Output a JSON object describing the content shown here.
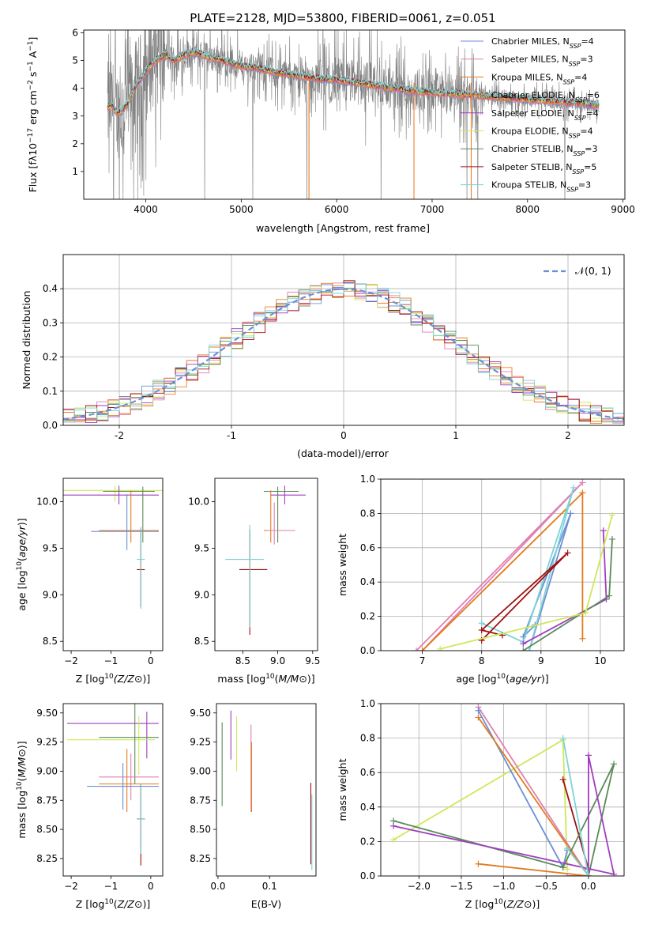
{
  "title": "PLATE=2128, MJD=53800, FIBERID=0061, z=0.051",
  "colors": {
    "Chabrier MILES": "#6b8fd6",
    "Salpeter MILES": "#e07fb0",
    "Kroupa MILES": "#e07c1e",
    "Chabrier ELODIE": "#ee7f2d",
    "Salpeter ELODIE": "#a03fbf",
    "Kroupa ELODIE": "#cfe85a",
    "Chabrier STELIB": "#5a8a5a",
    "Salpeter STELIB": "#a01010",
    "Kroupa STELIB": "#7ed3d8",
    "data": "#808080"
  },
  "chart_data": [
    {
      "type": "line",
      "title": "PLATE=2128, MJD=53800, FIBERID=0061, z=0.051",
      "xlabel": "wavelength [Angstrom, rest frame]",
      "ylabel_parts": [
        "Flux [f",
        "λ",
        "10",
        "−17",
        " erg cm",
        "−2",
        " s",
        "−1",
        " A",
        "−1",
        "]"
      ],
      "xlim": [
        3350,
        9020
      ],
      "ylim": [
        0,
        6.1
      ],
      "xticks": [
        4000,
        5000,
        6000,
        7000,
        8000,
        9000
      ],
      "yticks": [
        1,
        2,
        3,
        4,
        5,
        6
      ],
      "grid": false,
      "legend_loc": "right",
      "legend": [
        {
          "name": "Chabrier MILES",
          "nssp": "4"
        },
        {
          "name": "Salpeter MILES",
          "nssp": "3"
        },
        {
          "name": "Kroupa MILES",
          "nssp": "4"
        },
        {
          "name": "Chabrier ELODIE",
          "nssp": "6"
        },
        {
          "name": "Salpeter ELODIE",
          "nssp": "4"
        },
        {
          "name": "Kroupa ELODIE",
          "nssp": "4"
        },
        {
          "name": "Chabrier STELIB",
          "nssp": "3"
        },
        {
          "name": "Salpeter STELIB",
          "nssp": "5"
        },
        {
          "name": "Kroupa STELIB",
          "nssp": "3"
        }
      ],
      "model_continuum": {
        "x": [
          3600,
          3650,
          3700,
          3750,
          3800,
          3900,
          4000,
          4100,
          4200,
          4300,
          4400,
          4500,
          4600,
          4800,
          5000,
          5200,
          5400,
          5600,
          5800,
          6000,
          6200,
          6400,
          6600,
          6800,
          7000,
          7200,
          7400,
          7600,
          7800,
          8000,
          8200,
          8400,
          8600,
          8700
        ],
        "y": [
          3.3,
          3.4,
          3.1,
          3.2,
          3.4,
          4.1,
          4.6,
          5.0,
          5.2,
          5.0,
          5.2,
          5.3,
          5.2,
          5.0,
          4.8,
          4.7,
          4.55,
          4.45,
          4.35,
          4.3,
          4.2,
          4.1,
          4.0,
          3.9,
          3.85,
          3.8,
          3.75,
          3.7,
          3.65,
          3.6,
          3.55,
          3.5,
          3.45,
          3.4
        ]
      }
    },
    {
      "type": "line",
      "xlabel": "(data-model)/error",
      "ylabel": "Normed distribution",
      "xlim": [
        -2.5,
        2.5
      ],
      "ylim": [
        0,
        0.5
      ],
      "xticks": [
        -2,
        -1,
        0,
        1,
        2
      ],
      "yticks": [
        0.0,
        0.1,
        0.2,
        0.3,
        0.4
      ],
      "grid": true,
      "legend_loc": "top-right",
      "legend": [
        "𝒩(0, 1)"
      ],
      "reference_curve": "N(0,1) gaussian pdf",
      "histogram_bin_width": 0.1
    },
    {
      "type": "scatter",
      "panel": "age vs Z",
      "xlabel": "Z [log10(Z/Z⊙)]",
      "ylabel": "age  [log10(age/yr)]",
      "xlim": [
        -2.2,
        0.3
      ],
      "ylim": [
        8.4,
        10.25
      ],
      "xticks": [
        -2,
        -1,
        0
      ],
      "yticks": [
        8.5,
        9.0,
        9.5,
        10.0
      ],
      "points": [
        {
          "series": "Kroupa ELODIE",
          "x": -0.9,
          "y": 10.12,
          "xerr": [
            1.3,
            1.2
          ],
          "yerr": [
            0.12,
            0.05
          ]
        },
        {
          "series": "Salpeter ELODIE",
          "x": -0.8,
          "y": 10.07,
          "xerr": [
            1.4,
            1.0
          ],
          "yerr": [
            0.1,
            0.1
          ]
        },
        {
          "series": "Chabrier STELIB",
          "x": -0.2,
          "y": 10.11,
          "xerr": [
            1.0,
            0.3
          ],
          "yerr": [
            0.55,
            0.05
          ]
        },
        {
          "series": "Kroupa MILES",
          "x": -0.5,
          "y": 9.69,
          "xerr": [
            0.8,
            0.7
          ],
          "yerr": [
            0.13,
            0.43
          ]
        },
        {
          "series": "Chabrier MILES",
          "x": -0.6,
          "y": 9.68,
          "xerr": [
            0.9,
            0.8
          ],
          "yerr": [
            0.2,
            0.4
          ]
        },
        {
          "series": "Salpeter STELIB",
          "x": -0.25,
          "y": 9.27,
          "xerr": [
            0.1,
            0.1
          ],
          "yerr": [
            0.4,
            0.44
          ]
        },
        {
          "series": "Kroupa STELIB",
          "x": -0.25,
          "y": 9.38,
          "xerr": [
            0.1,
            0.1
          ],
          "yerr": [
            0.53,
            0.35
          ]
        }
      ]
    },
    {
      "type": "scatter",
      "panel": "age vs mass",
      "xlabel": "mass [log10(M/M⊙)]",
      "ylim": [
        8.4,
        10.25
      ],
      "xlim": [
        8.1,
        9.57
      ],
      "xticks": [
        8.5,
        9.0,
        9.5
      ],
      "yticks": [
        8.5,
        9.0,
        9.5,
        10.0
      ],
      "points": [
        {
          "series": "Salpeter ELODIE",
          "x": 9.1,
          "y": 10.07,
          "xerr": [
            0.2,
            0.3
          ],
          "yerr": [
            0.1,
            0.1
          ]
        },
        {
          "series": "Chabrier STELIB",
          "x": 9.0,
          "y": 10.11,
          "xerr": [
            0.2,
            0.3
          ],
          "yerr": [
            0.55,
            0.05
          ]
        },
        {
          "series": "Kroupa MILES",
          "x": 8.9,
          "y": 9.69,
          "xerr": [
            0.1,
            0.2
          ],
          "yerr": [
            0.13,
            0.43
          ]
        },
        {
          "series": "Salpeter MILES",
          "x": 8.95,
          "y": 9.69,
          "xerr": [
            0.1,
            0.3
          ],
          "yerr": [
            0.15,
            0.3
          ]
        },
        {
          "series": "Salpeter STELIB",
          "x": 8.6,
          "y": 9.27,
          "xerr": [
            0.15,
            0.25
          ],
          "yerr": [
            0.7,
            0.43
          ]
        },
        {
          "series": "Kroupa STELIB",
          "x": 8.6,
          "y": 9.38,
          "xerr": [
            0.35,
            0.2
          ],
          "yerr": [
            0.73,
            0.37
          ]
        }
      ]
    },
    {
      "type": "line",
      "panel": "mass weight vs age",
      "xlabel": "age  [log10(age/yr)]",
      "ylabel": "mass weight",
      "xlim": [
        6.3,
        10.4
      ],
      "ylim": [
        0,
        1.0
      ],
      "xticks": [
        7,
        8,
        9,
        10
      ],
      "yticks": [
        0.0,
        0.2,
        0.4,
        0.6,
        0.8,
        1.0
      ],
      "grid": true,
      "series": [
        {
          "name": "Salpeter MILES",
          "x": [
            6.9,
            9.7,
            7.0
          ],
          "y": [
            0.0,
            0.98,
            0.0
          ]
        },
        {
          "name": "Kroupa MILES",
          "x": [
            7.0,
            9.7,
            9.7
          ],
          "y": [
            0.0,
            0.92,
            0.07
          ]
        },
        {
          "name": "Chabrier MILES",
          "x": [
            8.8,
            9.5,
            8.7,
            8.9
          ],
          "y": [
            0.0,
            0.8,
            0.08,
            0.15
          ]
        },
        {
          "name": "Kroupa STELIB",
          "x": [
            8.8,
            9.55,
            8.7,
            8.0
          ],
          "y": [
            0.0,
            0.95,
            0.05,
            0.16
          ]
        },
        {
          "name": "Salpeter STELIB",
          "x": [
            8.0,
            9.45,
            8.0,
            8.35
          ],
          "y": [
            0.06,
            0.57,
            0.12,
            0.09
          ]
        },
        {
          "name": "Salpeter ELODIE",
          "x": [
            8.7,
            10.1,
            10.05
          ],
          "y": [
            0.04,
            0.3,
            0.7
          ]
        },
        {
          "name": "Chabrier STELIB",
          "x": [
            8.7,
            10.15,
            10.2
          ],
          "y": [
            0.0,
            0.32,
            0.65
          ]
        },
        {
          "name": "Kroupa ELODIE",
          "x": [
            7.3,
            9.75,
            10.2
          ],
          "y": [
            0.01,
            0.22,
            0.79
          ]
        }
      ]
    },
    {
      "type": "scatter",
      "panel": "mass vs Z",
      "xlabel": "Z [log10(Z/Z⊙)]",
      "ylabel": "mass [log10(M/M⊙)]",
      "xlim": [
        -2.2,
        0.3
      ],
      "ylim": [
        8.1,
        9.58
      ],
      "xticks": [
        -2,
        -1,
        0
      ],
      "yticks": [
        8.25,
        8.5,
        8.75,
        9.0,
        9.25,
        9.5
      ],
      "points": [
        {
          "series": "Salpeter ELODIE",
          "x": -0.1,
          "y": 9.41,
          "xerr": [
            2.0,
            0.3
          ],
          "yerr": [
            0.3,
            0.1
          ]
        },
        {
          "series": "Kroupa ELODIE",
          "x": -0.3,
          "y": 9.27,
          "xerr": [
            1.8,
            0.4
          ],
          "yerr": [
            0.3,
            0.2
          ]
        },
        {
          "series": "Chabrier STELIB",
          "x": -0.4,
          "y": 9.29,
          "xerr": [
            0.9,
            0.6
          ],
          "yerr": [
            0.4,
            0.3
          ]
        },
        {
          "series": "Salpeter MILES",
          "x": -0.5,
          "y": 8.95,
          "xerr": [
            0.8,
            0.7
          ],
          "yerr": [
            0.2,
            0.2
          ]
        },
        {
          "series": "Kroupa MILES",
          "x": -0.6,
          "y": 8.89,
          "xerr": [
            0.7,
            0.8
          ],
          "yerr": [
            0.24,
            0.3
          ]
        },
        {
          "series": "Chabrier MILES",
          "x": -0.7,
          "y": 8.87,
          "xerr": [
            0.9,
            0.9
          ],
          "yerr": [
            0.2,
            0.2
          ]
        },
        {
          "series": "Salpeter STELIB",
          "x": -0.25,
          "y": 8.59,
          "xerr": [
            0.1,
            0.1
          ],
          "yerr": [
            0.4,
            0.3
          ]
        },
        {
          "series": "Kroupa STELIB",
          "x": -0.25,
          "y": 8.59,
          "xerr": [
            0.1,
            0.1
          ],
          "yerr": [
            0.3,
            0.3
          ]
        }
      ]
    },
    {
      "type": "scatter",
      "panel": "mass vs E(B-V)",
      "xlabel": "E(B-V)",
      "xlim": [
        -0.003,
        0.19
      ],
      "ylim": [
        8.1,
        9.58
      ],
      "xticks": [
        0.0,
        0.1
      ],
      "yticks": [
        8.25,
        8.5,
        8.75,
        9.0,
        9.25,
        9.5
      ],
      "points": [
        {
          "series": "Chabrier STELIB",
          "x": 0.008,
          "y": 9.05,
          "yerr": [
            0.35,
            0.37
          ]
        },
        {
          "series": "Salpeter ELODIE",
          "x": 0.025,
          "y": 9.25,
          "yerr": [
            0.15,
            0.27
          ]
        },
        {
          "series": "Kroupa ELODIE",
          "x": 0.036,
          "y": 9.2,
          "yerr": [
            0.2,
            0.27
          ]
        },
        {
          "series": "Salpeter MILES",
          "x": 0.064,
          "y": 9.0,
          "yerr": [
            0.35,
            0.4
          ]
        },
        {
          "series": "Kroupa MILES",
          "x": 0.065,
          "y": 8.95,
          "yerr": [
            0.3,
            0.3
          ]
        },
        {
          "series": "Salpeter STELIB",
          "x": 0.18,
          "y": 8.6,
          "yerr": [
            0.4,
            0.3
          ]
        },
        {
          "series": "Kroupa STELIB",
          "x": 0.182,
          "y": 8.5,
          "yerr": [
            0.35,
            0.3
          ]
        }
      ]
    },
    {
      "type": "line",
      "panel": "mass weight vs Z",
      "xlabel": "Z [log10(Z/Z⊙)]",
      "ylabel": "mass weight",
      "xlim": [
        -2.45,
        0.42
      ],
      "ylim": [
        0,
        1.0
      ],
      "xticks": [
        -2.0,
        -1.5,
        -1.0,
        -0.5,
        0.0
      ],
      "yticks": [
        0.0,
        0.2,
        0.4,
        0.6,
        0.8,
        1.0
      ],
      "grid": true,
      "series": [
        {
          "name": "Kroupa ELODIE",
          "x": [
            -2.3,
            -0.3,
            -0.25
          ],
          "y": [
            0.21,
            0.79,
            0.04
          ]
        },
        {
          "name": "Salpeter MILES",
          "x": [
            -1.3,
            0.0,
            -0.25
          ],
          "y": [
            0.98,
            0.0,
            0.0
          ]
        },
        {
          "name": "Chabrier MILES",
          "x": [
            -1.3,
            -0.3,
            -0.25
          ],
          "y": [
            0.96,
            0.05,
            0.15
          ]
        },
        {
          "name": "Kroupa MILES",
          "x": [
            -1.3,
            -0.0,
            -1.3
          ],
          "y": [
            0.92,
            0.0,
            0.07
          ]
        },
        {
          "name": "Salpeter STELIB",
          "x": [
            -0.3,
            -0.0
          ],
          "y": [
            0.56,
            0.04
          ]
        },
        {
          "name": "Chabrier STELIB",
          "x": [
            -2.3,
            -0.3,
            0.3,
            0.0
          ],
          "y": [
            0.32,
            0.05,
            0.65,
            0.0
          ]
        },
        {
          "name": "Salpeter ELODIE",
          "x": [
            -2.3,
            0.3,
            0.0,
            0.0
          ],
          "y": [
            0.29,
            0.01,
            0.7,
            0.0
          ]
        },
        {
          "name": "Kroupa STELIB",
          "x": [
            -0.25,
            0.0,
            -0.3
          ],
          "y": [
            0.16,
            0.0,
            0.8
          ]
        }
      ]
    }
  ]
}
